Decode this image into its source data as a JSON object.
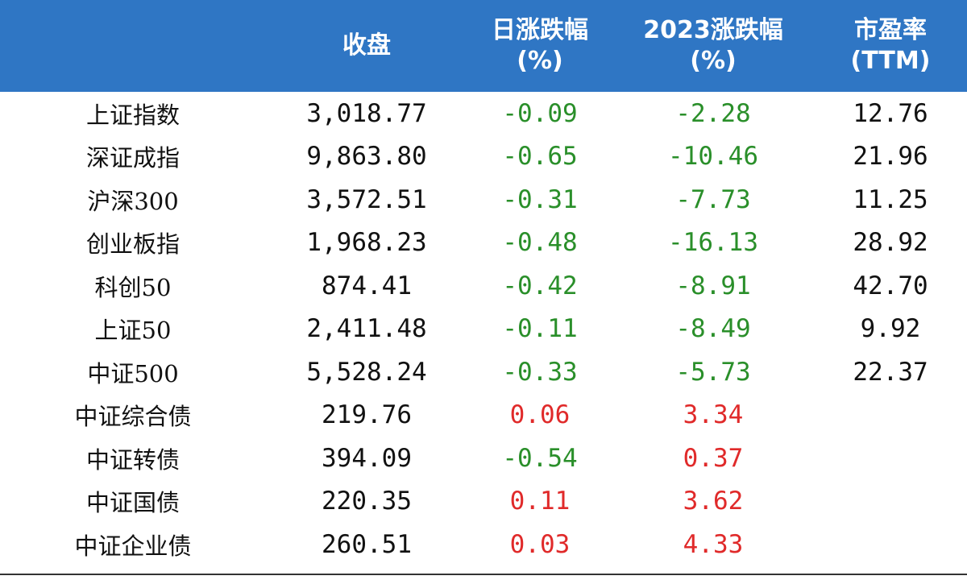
{
  "header": {
    "col_name": "",
    "col_close": "收盘",
    "col_day_line1": "日涨跌幅",
    "col_day_line2": "(%)",
    "col_ytd_line1": "2023涨跌幅",
    "col_ytd_line2": "(%)",
    "col_pe_line1": "市盈率",
    "col_pe_line2": "(TTM)"
  },
  "colors": {
    "header_bg": "#2f76c4",
    "negative": "#2a8f2a",
    "positive": "#e02a2a"
  },
  "rows": [
    {
      "name": "上证指数",
      "close": "3,018.77",
      "day": "-0.09",
      "ytd": "-2.28",
      "pe": "12.76"
    },
    {
      "name": "深证成指",
      "close": "9,863.80",
      "day": "-0.65",
      "ytd": "-10.46",
      "pe": "21.96"
    },
    {
      "name": "沪深300",
      "close": "3,572.51",
      "day": "-0.31",
      "ytd": "-7.73",
      "pe": "11.25"
    },
    {
      "name": "创业板指",
      "close": "1,968.23",
      "day": "-0.48",
      "ytd": "-16.13",
      "pe": "28.92"
    },
    {
      "name": "科创50",
      "close": "874.41",
      "day": "-0.42",
      "ytd": "-8.91",
      "pe": "42.70"
    },
    {
      "name": "上证50",
      "close": "2,411.48",
      "day": "-0.11",
      "ytd": "-8.49",
      "pe": "9.92"
    },
    {
      "name": "中证500",
      "close": "5,528.24",
      "day": "-0.33",
      "ytd": "-5.73",
      "pe": "22.37"
    },
    {
      "name": "中证综合债",
      "close": "219.76",
      "day": "0.06",
      "ytd": "3.34",
      "pe": ""
    },
    {
      "name": "中证转债",
      "close": "394.09",
      "day": "-0.54",
      "ytd": "0.37",
      "pe": ""
    },
    {
      "name": "中证国债",
      "close": "220.35",
      "day": "0.11",
      "ytd": "3.62",
      "pe": ""
    },
    {
      "name": "中证企业债",
      "close": "260.51",
      "day": "0.03",
      "ytd": "4.33",
      "pe": ""
    }
  ]
}
